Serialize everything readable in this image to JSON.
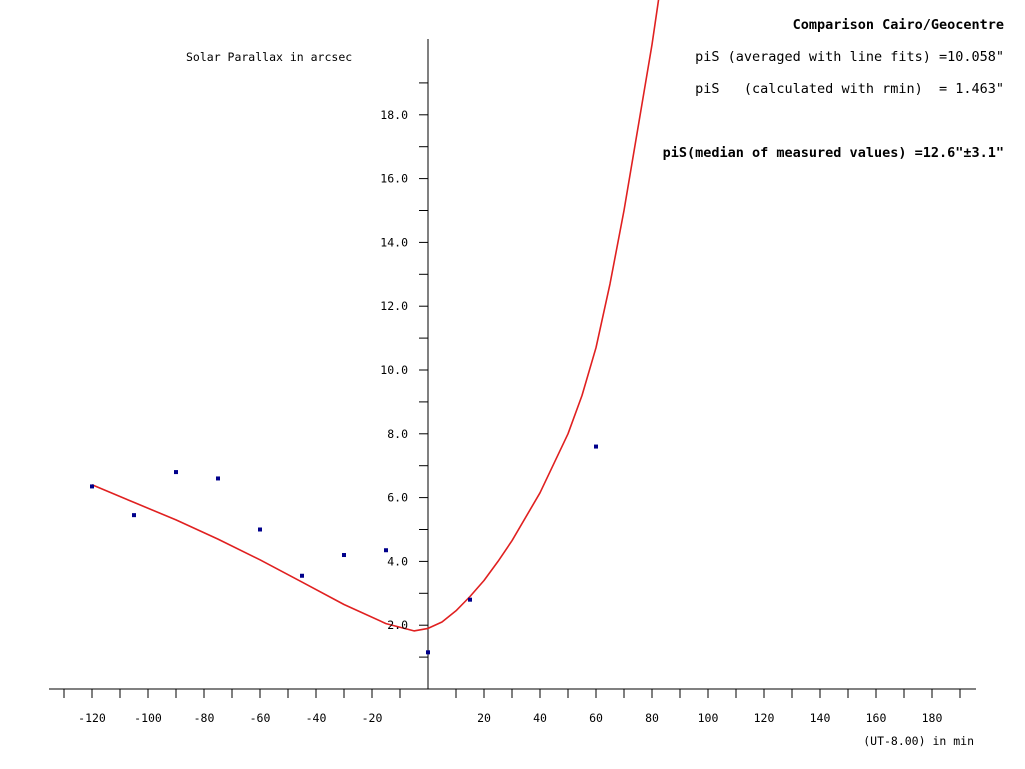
{
  "chart_data": {
    "type": "scatter",
    "title": "Comparison Cairo/Geocentre",
    "ylabel": "Solar Parallax in arcsec",
    "xlabel": "(UT-8.00) in min",
    "annotations": [
      "piS (averaged with line fits) =10.058\"",
      "piS   (calculated with rmin)  = 1.463\"",
      "piS(median of measured values) =12.6\"±3.1\""
    ],
    "xlim": [
      -135,
      195
    ],
    "ylim": [
      0,
      20
    ],
    "x_ticks": [
      -120,
      -100,
      -80,
      -60,
      -40,
      -20,
      20,
      40,
      60,
      80,
      100,
      120,
      140,
      160,
      180
    ],
    "x_tick_labels": [
      "-120",
      "-100",
      "-80",
      "-60",
      "-40",
      "-20",
      "20",
      "40",
      "60",
      "80",
      "100",
      "120",
      "140",
      "160",
      "180"
    ],
    "y_ticks": [
      2,
      4,
      6,
      8,
      10,
      12,
      14,
      16,
      18
    ],
    "y_tick_labels": [
      "2.0",
      "4.0",
      "6.0",
      "8.0",
      "10.0",
      "12.0",
      "14.0",
      "16.0",
      "18.0"
    ],
    "grid": false,
    "series": [
      {
        "kind": "points",
        "color": "#00008b",
        "x": [
          -120,
          -105,
          -90,
          -75,
          -60,
          -45,
          -30,
          -15,
          0,
          15,
          60
        ],
        "y": [
          6.35,
          5.45,
          6.8,
          6.6,
          5.0,
          3.55,
          4.2,
          4.35,
          1.15,
          2.8,
          7.6
        ]
      },
      {
        "kind": "curve",
        "color": "#e02020",
        "x": [
          -120,
          -105,
          -90,
          -75,
          -60,
          -45,
          -30,
          -15,
          -5,
          0,
          5,
          10,
          15,
          20,
          25,
          30,
          40,
          50,
          55,
          60,
          65,
          70,
          75,
          80,
          83
        ],
        "y": [
          6.4,
          5.85,
          5.3,
          4.7,
          4.05,
          3.35,
          2.65,
          2.05,
          1.82,
          1.9,
          2.1,
          2.45,
          2.9,
          3.4,
          4.0,
          4.65,
          6.15,
          8.0,
          9.2,
          10.7,
          12.7,
          15.0,
          17.6,
          20.2,
          22.0
        ]
      }
    ]
  }
}
